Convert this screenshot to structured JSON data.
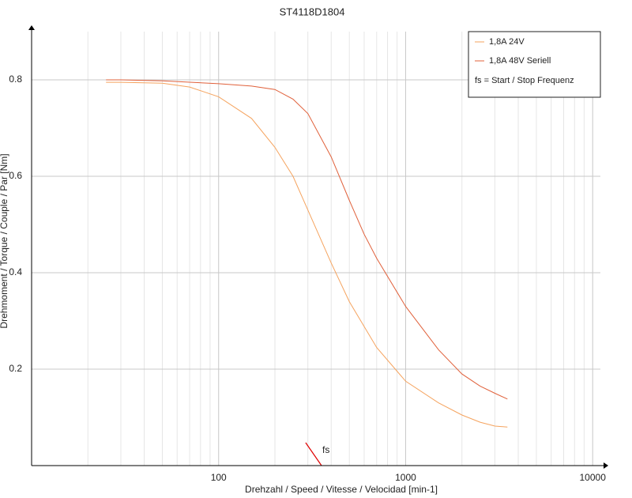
{
  "chart_data": {
    "type": "line",
    "title": "ST4118D1804",
    "x_label": "Drehzahl / Speed / Vitesse / Velocidad [min-1]",
    "y_label": "Drehmoment / Torque / Couple / Par [Nm]",
    "x_scale": "log",
    "grid": true,
    "legend": "top-right",
    "xlim": [
      10,
      11000
    ],
    "xticks": [
      100,
      1000,
      10000
    ],
    "ylim": [
      0,
      0.9
    ],
    "yticks": [
      0.2,
      0.4,
      0.6,
      0.8
    ],
    "series": [
      {
        "name": "1,8A  24V",
        "color": "#f5a35e",
        "x": [
          25,
          30,
          50,
          70,
          100,
          150,
          200,
          250,
          300,
          400,
          500,
          700,
          1000,
          1500,
          2000,
          2500,
          3000,
          3500
        ],
        "values": [
          0.795,
          0.795,
          0.793,
          0.785,
          0.765,
          0.72,
          0.66,
          0.6,
          0.53,
          0.42,
          0.34,
          0.245,
          0.175,
          0.13,
          0.105,
          0.09,
          0.082,
          0.08
        ]
      },
      {
        "name": "1,8A  48V  Seriell",
        "color": "#e0603a",
        "x": [
          25,
          30,
          50,
          100,
          150,
          200,
          250,
          300,
          400,
          500,
          600,
          700,
          1000,
          1500,
          2000,
          2500,
          3000,
          3500
        ],
        "values": [
          0.8,
          0.8,
          0.798,
          0.792,
          0.787,
          0.78,
          0.76,
          0.73,
          0.64,
          0.55,
          0.48,
          0.43,
          0.33,
          0.24,
          0.19,
          0.165,
          0.15,
          0.138
        ]
      }
    ],
    "legend_note": {
      "text": "fs = Start / Stop Frequenz",
      "color": "#e00000"
    },
    "fs_marker": {
      "label": "fs",
      "color": "#e00000",
      "x": [
        292,
        355
      ],
      "y": [
        0.0475,
        0
      ]
    }
  }
}
